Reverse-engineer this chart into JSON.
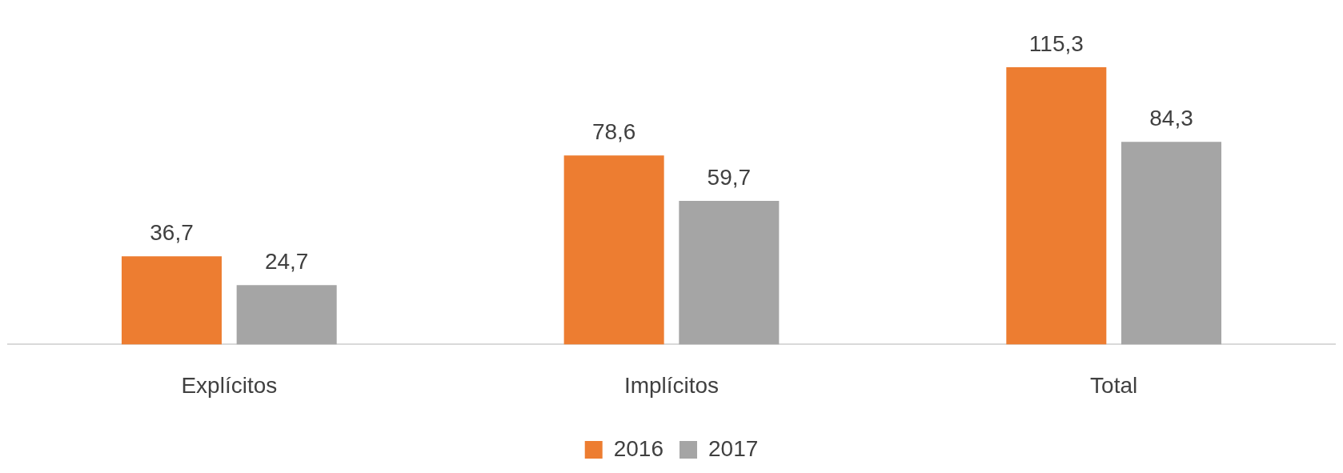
{
  "chart_data": {
    "type": "bar",
    "categories": [
      "Explícitos",
      "Implícitos",
      "Total"
    ],
    "legend": "bottom",
    "series": [
      {
        "name": "2016",
        "color": "#ed7d31",
        "values": [
          36.7,
          78.6,
          115.3
        ],
        "value_labels": [
          "36,7",
          "78,6",
          "115,3"
        ]
      },
      {
        "name": "2017",
        "color": "#a5a5a5",
        "values": [
          24.7,
          59.7,
          84.3
        ],
        "value_labels": [
          "24,7",
          "59,7",
          "84,3"
        ]
      }
    ]
  }
}
